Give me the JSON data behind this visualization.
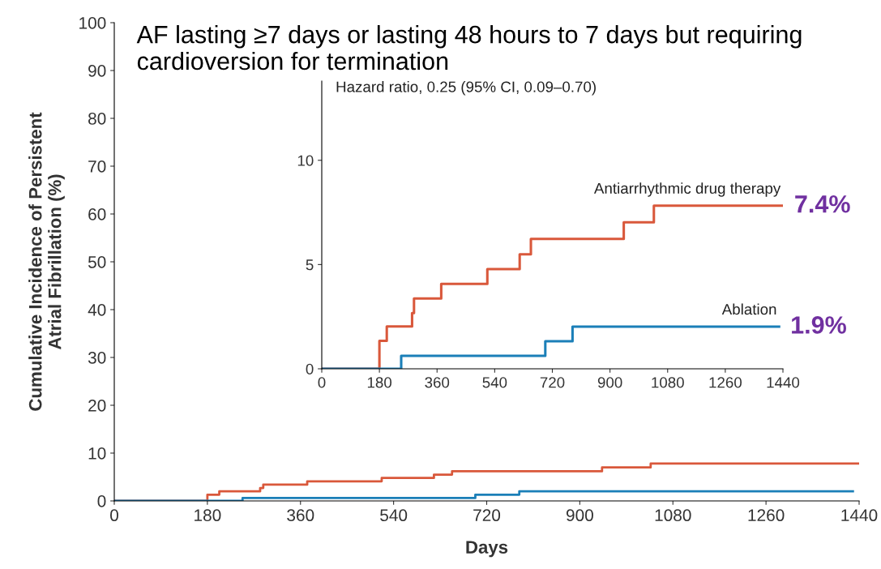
{
  "chart_data": [
    {
      "type": "step",
      "title": "AF lasting ≥7 days or lasting 48 hours to 7 days but requiring cardioversion for termination",
      "xlabel": "Days",
      "ylabel": "Cumulative Incidence of Persistent\nAtrial Fibrillation (%)",
      "xlim": [
        0,
        1440
      ],
      "xticks": [
        0,
        180,
        360,
        540,
        720,
        900,
        1080,
        1260,
        1440
      ],
      "ylim": [
        0,
        100
      ],
      "yticks": [
        0,
        10,
        20,
        30,
        40,
        50,
        60,
        70,
        80,
        90,
        100
      ],
      "grid": false,
      "legend": false,
      "series": [
        {
          "color": "#d9583b",
          "x": [
            0,
            180,
            203,
            282,
            288,
            373,
            517,
            618,
            653,
            943,
            1037,
            1440
          ],
          "values": [
            0,
            1.3,
            2.0,
            2.7,
            3.4,
            4.1,
            4.8,
            5.5,
            6.2,
            7.0,
            7.8,
            7.8
          ]
        },
        {
          "color": "#1b7fb8",
          "x": [
            0,
            248,
            698,
            783,
            1428
          ],
          "values": [
            0,
            0.6,
            1.3,
            2.0,
            2.0
          ]
        }
      ]
    },
    {
      "type": "step",
      "xlim": [
        0,
        1440
      ],
      "xticks": [
        0,
        180,
        360,
        540,
        720,
        900,
        1080,
        1260,
        1440
      ],
      "ylim": [
        0,
        13.8
      ],
      "yticks": [
        0,
        5,
        10
      ],
      "grid": false,
      "legend": false,
      "annotations": [
        "Hazard ratio, 0.25 (95% CI, 0.09–0.70)",
        {
          "text": "7.4%",
          "x": 1440,
          "y": 7.8
        },
        {
          "text": "1.9%",
          "x": 1428,
          "y": 2.0
        }
      ],
      "series": [
        {
          "name": "Antiarrhythmic drug therapy",
          "color": "#d9583b",
          "x": [
            0,
            180,
            203,
            282,
            288,
            373,
            517,
            618,
            653,
            943,
            1037,
            1440
          ],
          "values": [
            0,
            1.34,
            2.03,
            2.67,
            3.37,
            4.07,
            4.78,
            5.49,
            6.23,
            7.03,
            7.82,
            7.82
          ]
        },
        {
          "name": "Ablation",
          "color": "#1b7fb8",
          "x": [
            0,
            248,
            698,
            783,
            1428
          ],
          "values": [
            0,
            0.62,
            1.32,
            2.02,
            2.02
          ]
        }
      ]
    }
  ]
}
